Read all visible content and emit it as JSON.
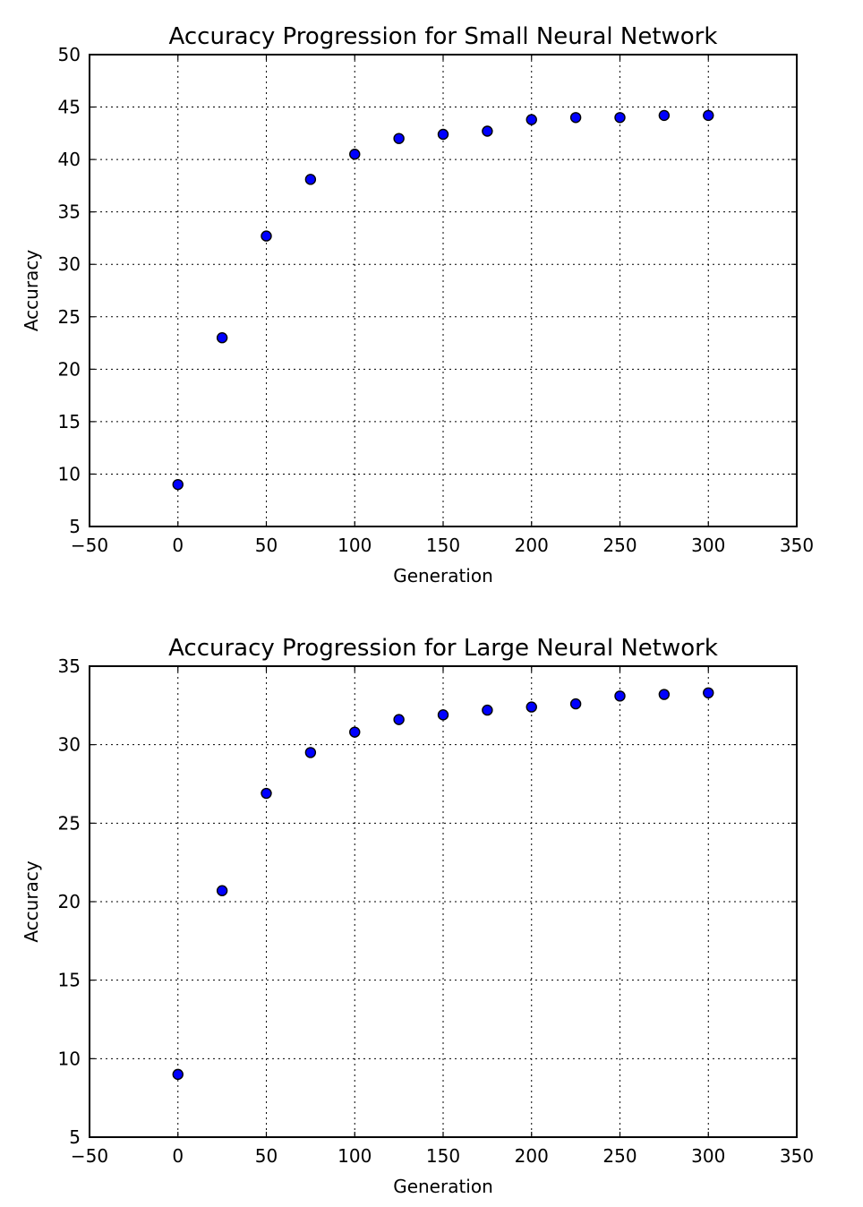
{
  "chart_data": [
    {
      "type": "scatter",
      "title": "Accuracy Progression for Small Neural Network",
      "xlabel": "Generation",
      "ylabel": "Accuracy",
      "xlim": [
        -50,
        350
      ],
      "ylim": [
        5,
        50
      ],
      "xticks": [
        -50,
        0,
        50,
        100,
        150,
        200,
        250,
        300,
        350
      ],
      "yticks": [
        5,
        10,
        15,
        20,
        25,
        30,
        35,
        40,
        45,
        50
      ],
      "grid": true,
      "marker_color": "#0000ff",
      "series": [
        {
          "x": [
            0,
            25,
            50,
            75,
            100,
            125,
            150,
            175,
            200,
            225,
            250,
            275,
            300
          ],
          "y": [
            9.0,
            23.0,
            32.7,
            38.1,
            40.5,
            42.0,
            42.4,
            42.7,
            43.8,
            44.0,
            44.0,
            44.2,
            44.2
          ]
        }
      ]
    },
    {
      "type": "scatter",
      "title": "Accuracy Progression for Large Neural Network",
      "xlabel": "Generation",
      "ylabel": "Accuracy",
      "xlim": [
        -50,
        350
      ],
      "ylim": [
        5,
        35
      ],
      "xticks": [
        -50,
        0,
        50,
        100,
        150,
        200,
        250,
        300,
        350
      ],
      "yticks": [
        5,
        10,
        15,
        20,
        25,
        30,
        35
      ],
      "grid": true,
      "marker_color": "#0000ff",
      "series": [
        {
          "x": [
            0,
            25,
            50,
            75,
            100,
            125,
            150,
            175,
            200,
            225,
            250,
            275,
            300
          ],
          "y": [
            9.0,
            20.7,
            26.9,
            29.5,
            30.8,
            31.6,
            31.9,
            32.2,
            32.4,
            32.6,
            33.1,
            33.2,
            33.3
          ]
        }
      ]
    }
  ]
}
